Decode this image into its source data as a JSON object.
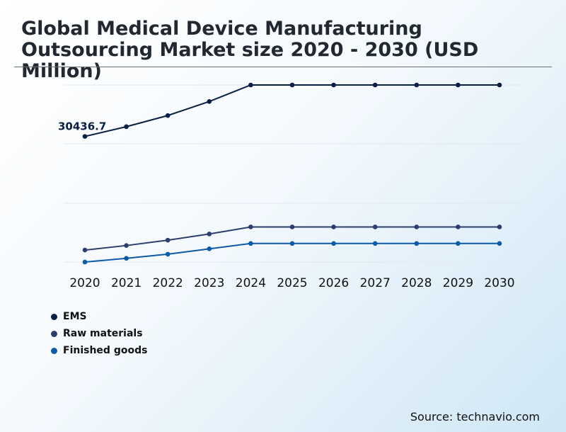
{
  "title": "Global Medical Device Manufacturing Outsourcing Market size 2020 - 2030 (USD Million)",
  "source": "Source: technavio.com",
  "chart_data": {
    "type": "line",
    "title": "Global Medical Device Manufacturing Outsourcing Market size 2020 - 2030 (USD Million)",
    "x": [
      "2020",
      "2021",
      "2022",
      "2023",
      "2024",
      "2025",
      "2026",
      "2027",
      "2028",
      "2029",
      "2030"
    ],
    "series": [
      {
        "name": "EMS",
        "color": "#0b1f45",
        "values": [
          30436.7,
          32800,
          35500,
          38900,
          42900,
          42900,
          42900,
          42900,
          42900,
          42900,
          42900
        ]
      },
      {
        "name": "Raw materials",
        "color": "#2c3e6b",
        "values": [
          2900,
          4000,
          5300,
          6800,
          8500,
          8500,
          8500,
          8500,
          8500,
          8500,
          8500
        ]
      },
      {
        "name": "Finished goods",
        "color": "#0d5aa7",
        "values": [
          0,
          900,
          1900,
          3200,
          4500,
          4500,
          4500,
          4500,
          4500,
          4500,
          4500
        ]
      }
    ],
    "annotations": [
      {
        "series": "EMS",
        "x": "2020",
        "label": "30436.7"
      }
    ],
    "ylim": [
      0,
      42900
    ],
    "grid": true,
    "legend": "bottom-left"
  }
}
